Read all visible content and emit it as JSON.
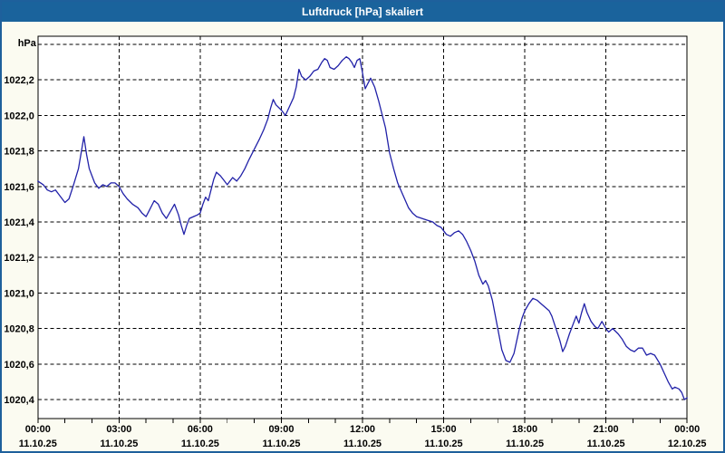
{
  "window": {
    "title": "Luftdruck [hPa] skaliert",
    "titlebar_color": "#1a639c",
    "border_color": "#1e609c",
    "background_color": "#fbfbf1"
  },
  "chart_data": {
    "type": "line",
    "title": "Luftdruck [hPa] skaliert",
    "ylabel": "hPa",
    "xlabel": "",
    "legend": "none",
    "grid": "dashed",
    "line_color": "#2121a8",
    "plot_bg": "#ffffff",
    "axis_color": "#000000",
    "ylim": [
      1020.293,
      1022.446
    ],
    "xlim_hours": [
      0,
      24
    ],
    "y_grid_values": [
      1022.4,
      1022.2,
      1022.0,
      1021.8,
      1021.6,
      1021.4,
      1021.2,
      1021.0,
      1020.8,
      1020.6,
      1020.4
    ],
    "y_ticks": [
      {
        "value": 1022.2,
        "label": "1022,2"
      },
      {
        "value": 1022.0,
        "label": "1022,0"
      },
      {
        "value": 1021.8,
        "label": "1021,8"
      },
      {
        "value": 1021.6,
        "label": "1021,6"
      },
      {
        "value": 1021.4,
        "label": "1021,4"
      },
      {
        "value": 1021.2,
        "label": "1021,2"
      },
      {
        "value": 1021.0,
        "label": "1021,0"
      },
      {
        "value": 1020.8,
        "label": "1020,8"
      },
      {
        "value": 1020.6,
        "label": "1020,6"
      },
      {
        "value": 1020.4,
        "label": "1020,4"
      }
    ],
    "x_ticks": [
      {
        "hour": 0,
        "time": "00:00",
        "date": "11.10.25"
      },
      {
        "hour": 3,
        "time": "03:00",
        "date": "11.10.25"
      },
      {
        "hour": 6,
        "time": "06:00",
        "date": "11.10.25"
      },
      {
        "hour": 9,
        "time": "09:00",
        "date": "11.10.25"
      },
      {
        "hour": 12,
        "time": "12:00",
        "date": "11.10.25"
      },
      {
        "hour": 15,
        "time": "15:00",
        "date": "11.10.25"
      },
      {
        "hour": 18,
        "time": "18:00",
        "date": "11.10.25"
      },
      {
        "hour": 21,
        "time": "21:00",
        "date": "11.10.25"
      },
      {
        "hour": 24,
        "time": "00:00",
        "date": "12.10.25"
      }
    ],
    "minor_tick_every_hours": 1,
    "points": [
      [
        0,
        1021.63
      ],
      [
        0.2,
        1021.61
      ],
      [
        0.35,
        1021.58
      ],
      [
        0.5,
        1021.57
      ],
      [
        0.65,
        1021.58
      ],
      [
        0.8,
        1021.55
      ],
      [
        1.0,
        1021.51
      ],
      [
        1.15,
        1021.53
      ],
      [
        1.3,
        1021.6
      ],
      [
        1.5,
        1021.7
      ],
      [
        1.6,
        1021.79
      ],
      [
        1.7,
        1021.88
      ],
      [
        1.8,
        1021.78
      ],
      [
        1.9,
        1021.7
      ],
      [
        2.0,
        1021.66
      ],
      [
        2.1,
        1021.62
      ],
      [
        2.25,
        1021.59
      ],
      [
        2.4,
        1021.61
      ],
      [
        2.55,
        1021.6
      ],
      [
        2.7,
        1021.62
      ],
      [
        2.85,
        1021.62
      ],
      [
        3.0,
        1021.6
      ],
      [
        3.15,
        1021.56
      ],
      [
        3.3,
        1021.53
      ],
      [
        3.5,
        1021.5
      ],
      [
        3.7,
        1021.48
      ],
      [
        3.85,
        1021.45
      ],
      [
        4.0,
        1021.43
      ],
      [
        4.1,
        1021.46
      ],
      [
        4.3,
        1021.52
      ],
      [
        4.45,
        1021.5
      ],
      [
        4.6,
        1021.45
      ],
      [
        4.75,
        1021.42
      ],
      [
        4.9,
        1021.46
      ],
      [
        5.05,
        1021.5
      ],
      [
        5.2,
        1021.44
      ],
      [
        5.3,
        1021.38
      ],
      [
        5.4,
        1021.33
      ],
      [
        5.5,
        1021.38
      ],
      [
        5.6,
        1021.42
      ],
      [
        5.75,
        1021.43
      ],
      [
        5.9,
        1021.44
      ],
      [
        6.0,
        1021.45
      ],
      [
        6.1,
        1021.5
      ],
      [
        6.2,
        1021.54
      ],
      [
        6.3,
        1021.52
      ],
      [
        6.4,
        1021.58
      ],
      [
        6.5,
        1021.64
      ],
      [
        6.6,
        1021.68
      ],
      [
        6.75,
        1021.66
      ],
      [
        6.9,
        1021.63
      ],
      [
        7.0,
        1021.61
      ],
      [
        7.1,
        1021.63
      ],
      [
        7.2,
        1021.65
      ],
      [
        7.35,
        1021.63
      ],
      [
        7.5,
        1021.66
      ],
      [
        7.65,
        1021.7
      ],
      [
        7.8,
        1021.75
      ],
      [
        8.0,
        1021.81
      ],
      [
        8.2,
        1021.87
      ],
      [
        8.35,
        1021.92
      ],
      [
        8.5,
        1021.98
      ],
      [
        8.6,
        1022.04
      ],
      [
        8.7,
        1022.09
      ],
      [
        8.8,
        1022.06
      ],
      [
        9.0,
        1022.03
      ],
      [
        9.15,
        1022.0
      ],
      [
        9.3,
        1022.05
      ],
      [
        9.45,
        1022.1
      ],
      [
        9.55,
        1022.16
      ],
      [
        9.65,
        1022.26
      ],
      [
        9.75,
        1022.22
      ],
      [
        9.9,
        1022.2
      ],
      [
        10.05,
        1022.22
      ],
      [
        10.2,
        1022.25
      ],
      [
        10.35,
        1022.26
      ],
      [
        10.5,
        1022.3
      ],
      [
        10.6,
        1022.32
      ],
      [
        10.7,
        1022.31
      ],
      [
        10.8,
        1022.27
      ],
      [
        10.95,
        1022.26
      ],
      [
        11.1,
        1022.28
      ],
      [
        11.25,
        1022.31
      ],
      [
        11.4,
        1022.33
      ],
      [
        11.5,
        1022.32
      ],
      [
        11.6,
        1022.3
      ],
      [
        11.7,
        1022.27
      ],
      [
        11.8,
        1022.31
      ],
      [
        11.9,
        1022.32
      ],
      [
        12.0,
        1022.24
      ],
      [
        12.1,
        1022.15
      ],
      [
        12.2,
        1022.18
      ],
      [
        12.3,
        1022.21
      ],
      [
        12.45,
        1022.16
      ],
      [
        12.6,
        1022.08
      ],
      [
        12.7,
        1022.02
      ],
      [
        12.85,
        1021.93
      ],
      [
        13.0,
        1021.79
      ],
      [
        13.15,
        1021.7
      ],
      [
        13.3,
        1021.62
      ],
      [
        13.5,
        1021.55
      ],
      [
        13.7,
        1021.48
      ],
      [
        13.85,
        1021.45
      ],
      [
        14.0,
        1021.43
      ],
      [
        14.2,
        1021.42
      ],
      [
        14.4,
        1021.41
      ],
      [
        14.6,
        1021.4
      ],
      [
        14.75,
        1021.38
      ],
      [
        14.9,
        1021.37
      ],
      [
        15.0,
        1021.35
      ],
      [
        15.1,
        1021.33
      ],
      [
        15.25,
        1021.32
      ],
      [
        15.4,
        1021.34
      ],
      [
        15.55,
        1021.35
      ],
      [
        15.7,
        1021.33
      ],
      [
        15.85,
        1021.29
      ],
      [
        16.0,
        1021.24
      ],
      [
        16.15,
        1021.18
      ],
      [
        16.3,
        1021.1
      ],
      [
        16.45,
        1021.05
      ],
      [
        16.55,
        1021.07
      ],
      [
        16.65,
        1021.04
      ],
      [
        16.8,
        1020.96
      ],
      [
        17.0,
        1020.8
      ],
      [
        17.15,
        1020.68
      ],
      [
        17.3,
        1020.62
      ],
      [
        17.45,
        1020.61
      ],
      [
        17.6,
        1020.66
      ],
      [
        17.7,
        1020.73
      ],
      [
        17.8,
        1020.8
      ],
      [
        17.9,
        1020.86
      ],
      [
        18.0,
        1020.9
      ],
      [
        18.15,
        1020.94
      ],
      [
        18.3,
        1020.97
      ],
      [
        18.45,
        1020.96
      ],
      [
        18.6,
        1020.94
      ],
      [
        18.75,
        1020.92
      ],
      [
        18.9,
        1020.9
      ],
      [
        19.0,
        1020.87
      ],
      [
        19.15,
        1020.8
      ],
      [
        19.3,
        1020.73
      ],
      [
        19.4,
        1020.67
      ],
      [
        19.5,
        1020.7
      ],
      [
        19.65,
        1020.77
      ],
      [
        19.8,
        1020.83
      ],
      [
        19.9,
        1020.87
      ],
      [
        20.0,
        1020.83
      ],
      [
        20.1,
        1020.89
      ],
      [
        20.2,
        1020.94
      ],
      [
        20.3,
        1020.89
      ],
      [
        20.45,
        1020.84
      ],
      [
        20.6,
        1020.81
      ],
      [
        20.7,
        1020.8
      ],
      [
        20.85,
        1020.84
      ],
      [
        21.0,
        1020.8
      ],
      [
        21.1,
        1020.78
      ],
      [
        21.25,
        1020.8
      ],
      [
        21.45,
        1020.77
      ],
      [
        21.6,
        1020.74
      ],
      [
        21.75,
        1020.7
      ],
      [
        21.9,
        1020.68
      ],
      [
        22.05,
        1020.67
      ],
      [
        22.2,
        1020.69
      ],
      [
        22.35,
        1020.69
      ],
      [
        22.5,
        1020.65
      ],
      [
        22.65,
        1020.66
      ],
      [
        22.8,
        1020.65
      ],
      [
        23.0,
        1020.6
      ],
      [
        23.15,
        1020.55
      ],
      [
        23.3,
        1020.5
      ],
      [
        23.45,
        1020.46
      ],
      [
        23.55,
        1020.47
      ],
      [
        23.7,
        1020.46
      ],
      [
        23.8,
        1020.44
      ],
      [
        23.9,
        1020.4
      ],
      [
        24.0,
        1020.41
      ]
    ]
  }
}
